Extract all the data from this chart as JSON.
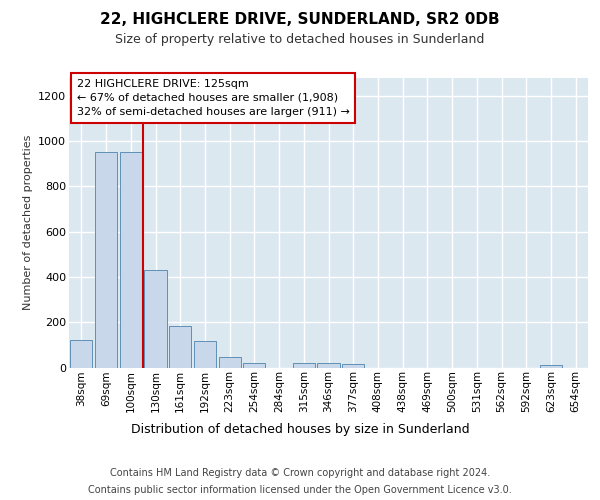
{
  "title": "22, HIGHCLERE DRIVE, SUNDERLAND, SR2 0DB",
  "subtitle": "Size of property relative to detached houses in Sunderland",
  "xlabel": "Distribution of detached houses by size in Sunderland",
  "ylabel": "Number of detached properties",
  "footnote1": "Contains HM Land Registry data © Crown copyright and database right 2024.",
  "footnote2": "Contains public sector information licensed under the Open Government Licence v3.0.",
  "categories": [
    "38sqm",
    "69sqm",
    "100sqm",
    "130sqm",
    "161sqm",
    "192sqm",
    "223sqm",
    "254sqm",
    "284sqm",
    "315sqm",
    "346sqm",
    "377sqm",
    "408sqm",
    "438sqm",
    "469sqm",
    "500sqm",
    "531sqm",
    "562sqm",
    "592sqm",
    "623sqm",
    "654sqm"
  ],
  "values": [
    120,
    950,
    950,
    430,
    185,
    118,
    45,
    20,
    0,
    18,
    20,
    15,
    0,
    0,
    0,
    0,
    0,
    0,
    0,
    10,
    0
  ],
  "bar_color": "#c8d8ea",
  "bar_edge_color": "#6090b8",
  "ylim": [
    0,
    1280
  ],
  "yticks": [
    0,
    200,
    400,
    600,
    800,
    1000,
    1200
  ],
  "red_line_x": 2.5,
  "red_line_color": "#cc0000",
  "annotation_line1": "22 HIGHCLERE DRIVE: 125sqm",
  "annotation_line2": "← 67% of detached houses are smaller (1,908)",
  "annotation_line3": "32% of semi-detached houses are larger (911) →",
  "background_color": "#dce8f0",
  "fig_background": "#ffffff",
  "title_fontsize": 11,
  "subtitle_fontsize": 9,
  "ylabel_fontsize": 8,
  "xlabel_fontsize": 9,
  "tick_fontsize": 8,
  "xtick_fontsize": 7.5,
  "annot_fontsize": 8,
  "footnote_fontsize": 7
}
